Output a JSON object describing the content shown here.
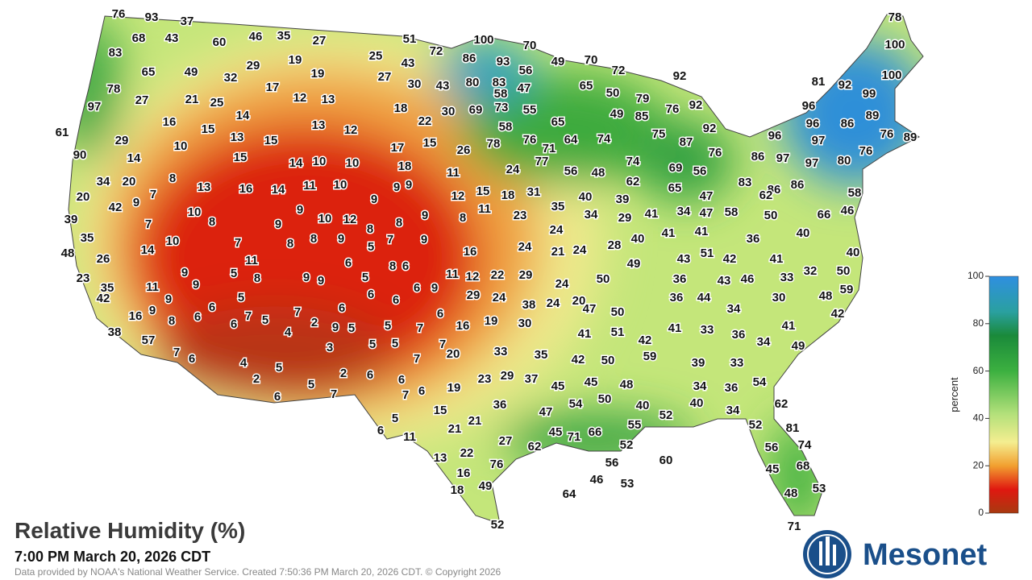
{
  "title": "Relative Humidity (%)",
  "subtitle": "7:00 PM March 20, 2026 CDT",
  "credit": "Data provided by NOAA's National Weather Service. Created 7:50:36 PM March 20, 2026 CDT. © Copyright 2026",
  "logo": "Mesonet",
  "colorbar": {
    "label": "percent",
    "range": [
      0,
      100
    ],
    "ticks": [
      0,
      20,
      40,
      60,
      80,
      100
    ]
  },
  "stations": [
    76,
    93,
    37,
    68,
    43,
    60,
    46,
    35,
    27,
    51,
    100,
    70,
    78,
    83,
    72,
    86,
    93,
    56,
    49,
    70,
    100,
    65,
    49,
    29,
    19,
    25,
    43,
    72,
    92,
    100,
    78,
    32,
    19,
    27,
    30,
    43,
    80,
    83,
    58,
    47,
    65,
    81,
    92,
    99,
    97,
    27,
    21,
    25,
    17,
    12,
    13,
    18,
    30,
    69,
    73,
    55,
    50,
    79,
    96,
    96,
    86,
    89,
    16,
    14,
    13,
    12,
    22,
    58,
    65,
    49,
    85,
    76,
    92,
    92,
    61,
    15,
    13,
    15,
    17,
    15,
    26,
    78,
    76,
    71,
    64,
    74,
    75,
    87,
    96,
    97,
    76,
    89,
    29,
    10,
    15,
    14,
    10,
    10,
    18,
    11,
    24,
    77,
    56,
    48,
    74,
    76,
    86,
    97,
    97,
    80,
    76,
    90,
    14,
    69,
    56,
    34,
    20,
    8,
    13,
    16,
    14,
    11,
    10,
    9,
    9,
    9,
    12,
    15,
    18,
    31,
    62,
    65,
    83,
    86,
    86,
    20,
    9,
    7,
    42,
    35,
    40,
    39,
    47,
    62,
    58,
    39,
    10,
    8,
    9,
    9,
    10,
    12,
    8,
    8,
    9,
    11,
    8,
    23,
    34,
    29,
    41,
    34,
    47,
    58,
    50,
    66,
    46,
    7,
    35,
    10,
    8,
    8,
    9,
    5,
    7,
    9,
    24,
    24,
    28,
    40,
    41,
    41,
    36,
    40,
    40,
    48,
    26,
    14,
    7,
    11,
    6,
    8,
    6,
    16,
    21,
    24,
    49,
    43,
    51,
    42,
    41,
    32,
    50,
    23,
    9,
    9,
    5,
    8,
    9,
    9,
    5,
    11,
    12,
    22,
    29,
    24,
    50,
    36,
    43,
    46,
    33,
    35,
    11,
    42,
    9,
    5,
    6,
    6,
    6,
    9,
    29,
    24,
    38,
    24,
    20,
    36,
    44,
    30,
    48,
    59,
    16,
    9,
    6,
    7,
    5,
    7,
    6,
    6,
    47,
    50,
    34,
    42,
    8,
    6,
    6,
    4,
    2,
    9,
    5,
    5,
    7,
    16,
    19,
    30,
    41,
    33,
    36,
    41,
    38,
    57,
    5,
    5,
    7,
    41,
    51,
    42,
    34,
    49,
    3,
    20,
    33,
    35,
    42,
    50,
    59,
    39,
    33,
    7,
    6,
    4,
    5,
    7,
    2,
    2,
    6,
    6,
    23,
    29,
    37,
    45,
    45,
    48,
    34,
    36,
    54,
    5,
    7,
    7,
    6,
    19,
    6,
    36,
    54,
    50,
    40,
    40,
    62,
    15,
    47,
    52,
    34,
    5,
    21,
    21,
    45,
    71,
    66,
    55,
    52,
    81,
    6,
    11,
    27,
    62,
    52,
    56,
    74,
    22,
    13,
    56,
    60,
    76,
    16,
    46,
    53,
    45,
    68,
    18,
    49,
    64,
    48,
    53,
    52,
    71
  ]
}
